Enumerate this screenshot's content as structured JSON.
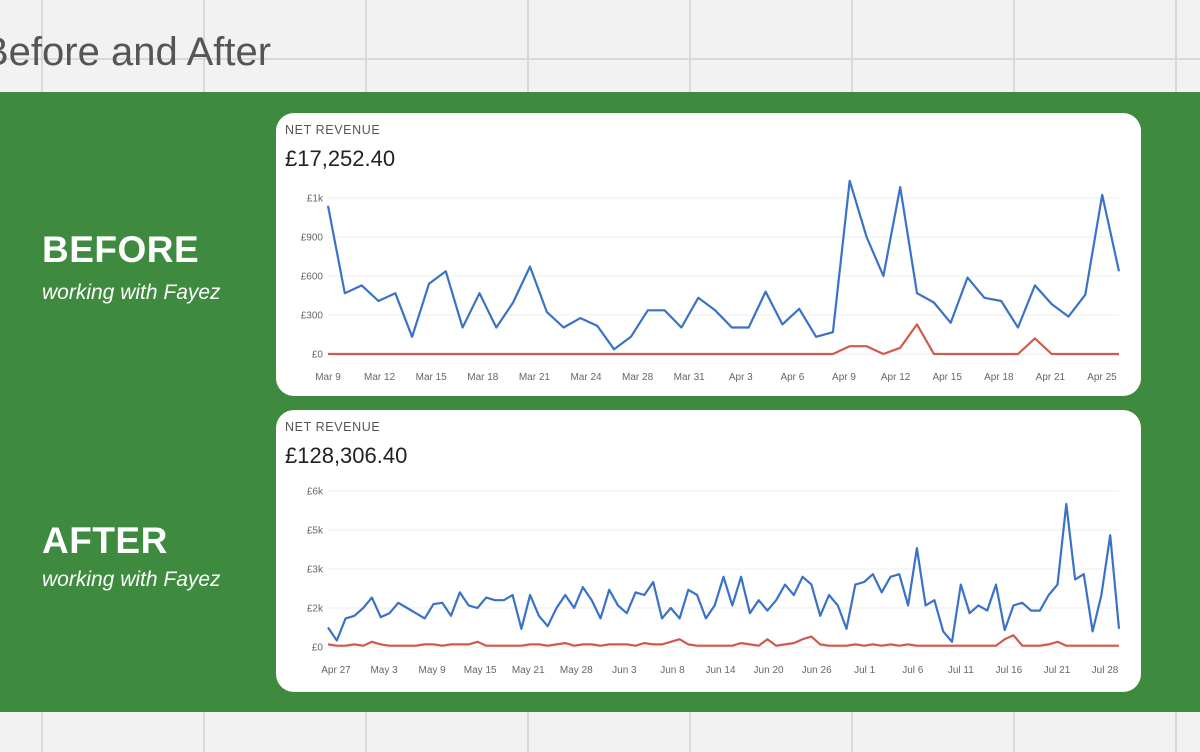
{
  "page": {
    "title": "Before and After"
  },
  "panels": {
    "before": {
      "heading": "BEFORE",
      "sub": "working with Fayez"
    },
    "after": {
      "heading": "AFTER",
      "sub": "working with Fayez"
    }
  },
  "colors": {
    "band": "#3e8b3f",
    "series_primary": "#3a72c8",
    "series_secondary": "#cf5a4d"
  },
  "chart_data": [
    {
      "type": "line",
      "label": "NET REVENUE",
      "total": "£17,252.40",
      "yticks": [
        "£0",
        "£300",
        "£600",
        "£900",
        "£1k"
      ],
      "ylim": [
        0,
        1000
      ],
      "xticks": [
        "Mar 9",
        "Mar 12",
        "Mar 15",
        "Mar 18",
        "Mar 21",
        "Mar 24",
        "Mar 28",
        "Mar 31",
        "Apr 3",
        "Apr 6",
        "Apr 9",
        "Apr 12",
        "Apr 15",
        "Apr 18",
        "Apr 21",
        "Apr 25"
      ],
      "grid": true,
      "series": [
        {
          "values": [
            950,
            390,
            440,
            340,
            390,
            110,
            450,
            530,
            170,
            390,
            170,
            330,
            560,
            270,
            170,
            230,
            180,
            30,
            110,
            280,
            280,
            170,
            360,
            280,
            170,
            170,
            400,
            190,
            290,
            110,
            140,
            1110,
            750,
            500,
            1070,
            390,
            330,
            200,
            490,
            360,
            340,
            170,
            440,
            320,
            240,
            380,
            1020,
            530
          ]
        },
        {
          "values": [
            0,
            0,
            0,
            0,
            0,
            0,
            0,
            0,
            0,
            0,
            0,
            0,
            0,
            0,
            0,
            0,
            0,
            0,
            0,
            0,
            0,
            0,
            0,
            0,
            0,
            0,
            0,
            0,
            0,
            0,
            0,
            50,
            50,
            0,
            40,
            190,
            0,
            0,
            0,
            0,
            0,
            0,
            100,
            0,
            0,
            0,
            0,
            0
          ]
        }
      ]
    },
    {
      "type": "line",
      "label": "NET REVENUE",
      "total": "£128,306.40",
      "yticks": [
        "£0",
        "£2k",
        "£3k",
        "£5k",
        "£6k"
      ],
      "ylim": [
        0,
        6000
      ],
      "xticks": [
        "Apr 27",
        "May 3",
        "May 9",
        "May 15",
        "May 21",
        "May 28",
        "Jun 3",
        "Jun 8",
        "Jun 14",
        "Jun 20",
        "Jun 26",
        "Jul 1",
        "Jul 6",
        "Jul 11",
        "Jul 16",
        "Jul 21",
        "Jul 28"
      ],
      "grid": true,
      "series": [
        {
          "values": [
            750,
            250,
            1100,
            1200,
            1500,
            1900,
            1150,
            1300,
            1700,
            1500,
            1300,
            1100,
            1650,
            1700,
            1200,
            2100,
            1600,
            1500,
            1900,
            1800,
            1800,
            2000,
            700,
            2000,
            1200,
            800,
            1500,
            2000,
            1500,
            2300,
            1800,
            1100,
            2200,
            1600,
            1300,
            2100,
            2000,
            2500,
            1100,
            1500,
            1100,
            2200,
            2000,
            1100,
            1600,
            2700,
            1600,
            2700,
            1300,
            1800,
            1400,
            1800,
            2400,
            2000,
            2700,
            2400,
            1200,
            2000,
            1600,
            700,
            2400,
            2500,
            2800,
            2100,
            2700,
            2800,
            1600,
            3800,
            1600,
            1800,
            600,
            200,
            2400,
            1300,
            1600,
            1400,
            2400,
            650,
            1600,
            1700,
            1400,
            1400,
            2000,
            2400,
            5500,
            2600,
            2800,
            600,
            2000,
            4300,
            700
          ]
        },
        {
          "values": [
            100,
            50,
            50,
            100,
            50,
            200,
            100,
            50,
            50,
            50,
            50,
            100,
            100,
            50,
            100,
            100,
            100,
            200,
            50,
            50,
            50,
            50,
            50,
            100,
            100,
            50,
            100,
            150,
            50,
            100,
            100,
            50,
            100,
            100,
            100,
            50,
            150,
            100,
            100,
            200,
            300,
            100,
            50,
            50,
            50,
            50,
            50,
            150,
            100,
            50,
            300,
            50,
            100,
            150,
            300,
            400,
            100,
            50,
            50,
            50,
            100,
            50,
            100,
            50,
            100,
            50,
            100,
            50,
            50,
            50,
            50,
            50,
            50,
            50,
            50,
            50,
            50,
            300,
            450,
            50,
            50,
            50,
            100,
            200,
            50,
            50,
            50,
            50,
            50,
            50,
            50
          ]
        }
      ]
    }
  ]
}
